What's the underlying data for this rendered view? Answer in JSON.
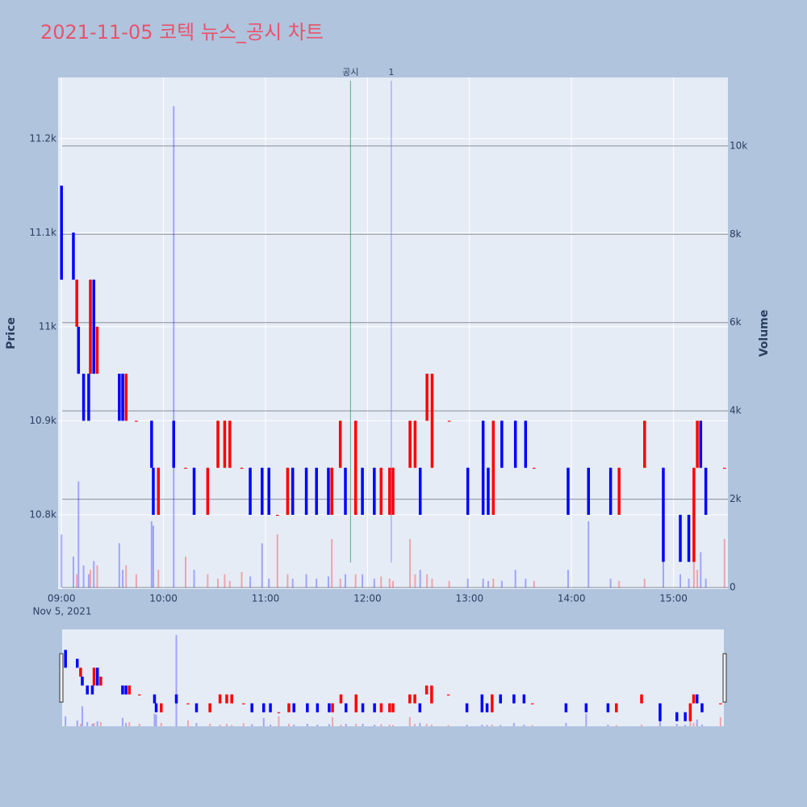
{
  "chart_data": {
    "type": "candlestick",
    "title": "2021-11-05 코텍 뉴스_공시 차트",
    "y_label": "Price",
    "y2_label": "Volume",
    "x_date_label": "Nov 5, 2021",
    "increasing_color": "#ff0000",
    "decreasing_color": "#0000ff",
    "x": [
      "09:00",
      "09:07",
      "09:09",
      "09:10",
      "09:13",
      "09:16",
      "09:17",
      "09:19",
      "09:21",
      "09:34",
      "09:36",
      "09:38",
      "09:44",
      "09:53",
      "09:54",
      "09:57",
      "10:06",
      "10:13",
      "10:18",
      "10:26",
      "10:32",
      "10:36",
      "10:39",
      "10:46",
      "10:51",
      "10:58",
      "11:02",
      "11:07",
      "11:13",
      "11:16",
      "11:24",
      "11:30",
      "11:37",
      "11:39",
      "11:44",
      "11:47",
      "11:53",
      "11:57",
      "12:04",
      "12:08",
      "12:13",
      "12:15",
      "12:25",
      "12:28",
      "12:31",
      "12:35",
      "12:38",
      "12:48",
      "12:59",
      "13:08",
      "13:11",
      "13:14",
      "13:19",
      "13:27",
      "13:33",
      "13:38",
      "13:58",
      "14:10",
      "14:23",
      "14:28",
      "14:43",
      "14:54",
      "15:04",
      "15:09",
      "15:12",
      "15:14",
      "15:16",
      "15:19",
      "15:30"
    ],
    "open": [
      11150,
      11100,
      11000,
      11000,
      10950,
      10950,
      10950,
      11050,
      10950,
      10950,
      10950,
      10900,
      10900,
      10900,
      10850,
      10800,
      10900,
      10850,
      10850,
      10800,
      10850,
      10850,
      10850,
      10850,
      10850,
      10850,
      10850,
      10800,
      10800,
      10850,
      10850,
      10850,
      10850,
      10800,
      10850,
      10850,
      10800,
      10850,
      10850,
      10800,
      10800,
      10800,
      10850,
      10850,
      10850,
      10900,
      10850,
      10900,
      10850,
      10900,
      10850,
      10800,
      10900,
      10900,
      10900,
      10850,
      10850,
      10850,
      10850,
      10800,
      10850,
      10850,
      10800,
      10800,
      10750,
      10850,
      10900,
      10850,
      10850
    ],
    "high": [
      11150,
      11100,
      11050,
      11000,
      10950,
      10950,
      11050,
      11050,
      11000,
      10950,
      10950,
      10950,
      10900,
      10900,
      10850,
      10850,
      10900,
      10850,
      10850,
      10850,
      10900,
      10900,
      10900,
      10850,
      10850,
      10850,
      10850,
      10800,
      10850,
      10850,
      10850,
      10850,
      10850,
      10850,
      10900,
      10850,
      10900,
      10850,
      10850,
      10850,
      10850,
      10850,
      10900,
      10900,
      10850,
      10950,
      10950,
      10900,
      10850,
      10900,
      10850,
      10900,
      10900,
      10900,
      10900,
      10850,
      10850,
      10850,
      10850,
      10850,
      10900,
      10850,
      10800,
      10800,
      10850,
      10900,
      10900,
      10850,
      10850
    ],
    "low": [
      11050,
      11050,
      11000,
      10950,
      10900,
      10900,
      10950,
      10950,
      10950,
      10900,
      10900,
      10900,
      10900,
      10850,
      10800,
      10800,
      10850,
      10850,
      10800,
      10800,
      10850,
      10850,
      10850,
      10850,
      10800,
      10800,
      10800,
      10800,
      10800,
      10800,
      10800,
      10800,
      10800,
      10800,
      10850,
      10800,
      10800,
      10800,
      10800,
      10800,
      10800,
      10800,
      10850,
      10850,
      10800,
      10900,
      10850,
      10900,
      10800,
      10800,
      10800,
      10800,
      10850,
      10850,
      10850,
      10850,
      10800,
      10800,
      10800,
      10800,
      10850,
      10750,
      10750,
      10750,
      10750,
      10850,
      10850,
      10800,
      10850
    ],
    "close": [
      11050,
      11050,
      11050,
      10950,
      10900,
      10900,
      11050,
      10950,
      11000,
      10900,
      10900,
      10950,
      10900,
      10850,
      10800,
      10850,
      10850,
      10850,
      10800,
      10850,
      10900,
      10900,
      10900,
      10850,
      10800,
      10800,
      10800,
      10800,
      10850,
      10800,
      10800,
      10800,
      10800,
      10850,
      10900,
      10800,
      10900,
      10800,
      10800,
      10850,
      10850,
      10850,
      10900,
      10900,
      10800,
      10950,
      10950,
      10900,
      10800,
      10800,
      10800,
      10900,
      10850,
      10850,
      10850,
      10850,
      10800,
      10800,
      10800,
      10850,
      10900,
      10750,
      10750,
      10750,
      10850,
      10900,
      10850,
      10800,
      10850
    ],
    "volume": [
      1200,
      700,
      300,
      2400,
      500,
      300,
      400,
      600,
      500,
      1000,
      400,
      500,
      300,
      1500,
      1400,
      400,
      10900,
      700,
      400,
      300,
      200,
      300,
      150,
      350,
      250,
      1000,
      200,
      1200,
      300,
      200,
      300,
      200,
      250,
      1100,
      200,
      300,
      300,
      300,
      200,
      250,
      200,
      150,
      1100,
      300,
      400,
      300,
      200,
      150,
      200,
      200,
      150,
      200,
      150,
      400,
      200,
      150,
      400,
      1500,
      200,
      150,
      200,
      800,
      300,
      200,
      1000,
      400,
      800,
      200,
      1100
    ],
    "xlim": [
      "08:58",
      "15:32"
    ],
    "xticks": [
      "09:00",
      "10:00",
      "11:00",
      "12:00",
      "13:00",
      "14:00",
      "15:00"
    ],
    "ylim": [
      10721,
      11265
    ],
    "yticks": [
      {
        "value": 10800,
        "label": "10.8k"
      },
      {
        "value": 10900,
        "label": "10.9k"
      },
      {
        "value": 11000,
        "label": "11k"
      },
      {
        "value": 11100,
        "label": "11.1k"
      },
      {
        "value": 11200,
        "label": "11.2k"
      }
    ],
    "y2lim": [
      0,
      11550
    ],
    "y2ticks": [
      0,
      {
        "value": 2000,
        "label": "2k"
      },
      {
        "value": 4000,
        "label": "4k"
      },
      {
        "value": 6000,
        "label": "6k"
      },
      {
        "value": 8000,
        "label": "8k"
      },
      {
        "value": 10000,
        "label": "10k"
      }
    ],
    "annotations": [
      {
        "x": "11:50",
        "text": "공시",
        "color": "#2e8b57"
      },
      {
        "x": "12:14",
        "text": "1",
        "color": "#6b6bff"
      }
    ],
    "range_slider": true
  }
}
